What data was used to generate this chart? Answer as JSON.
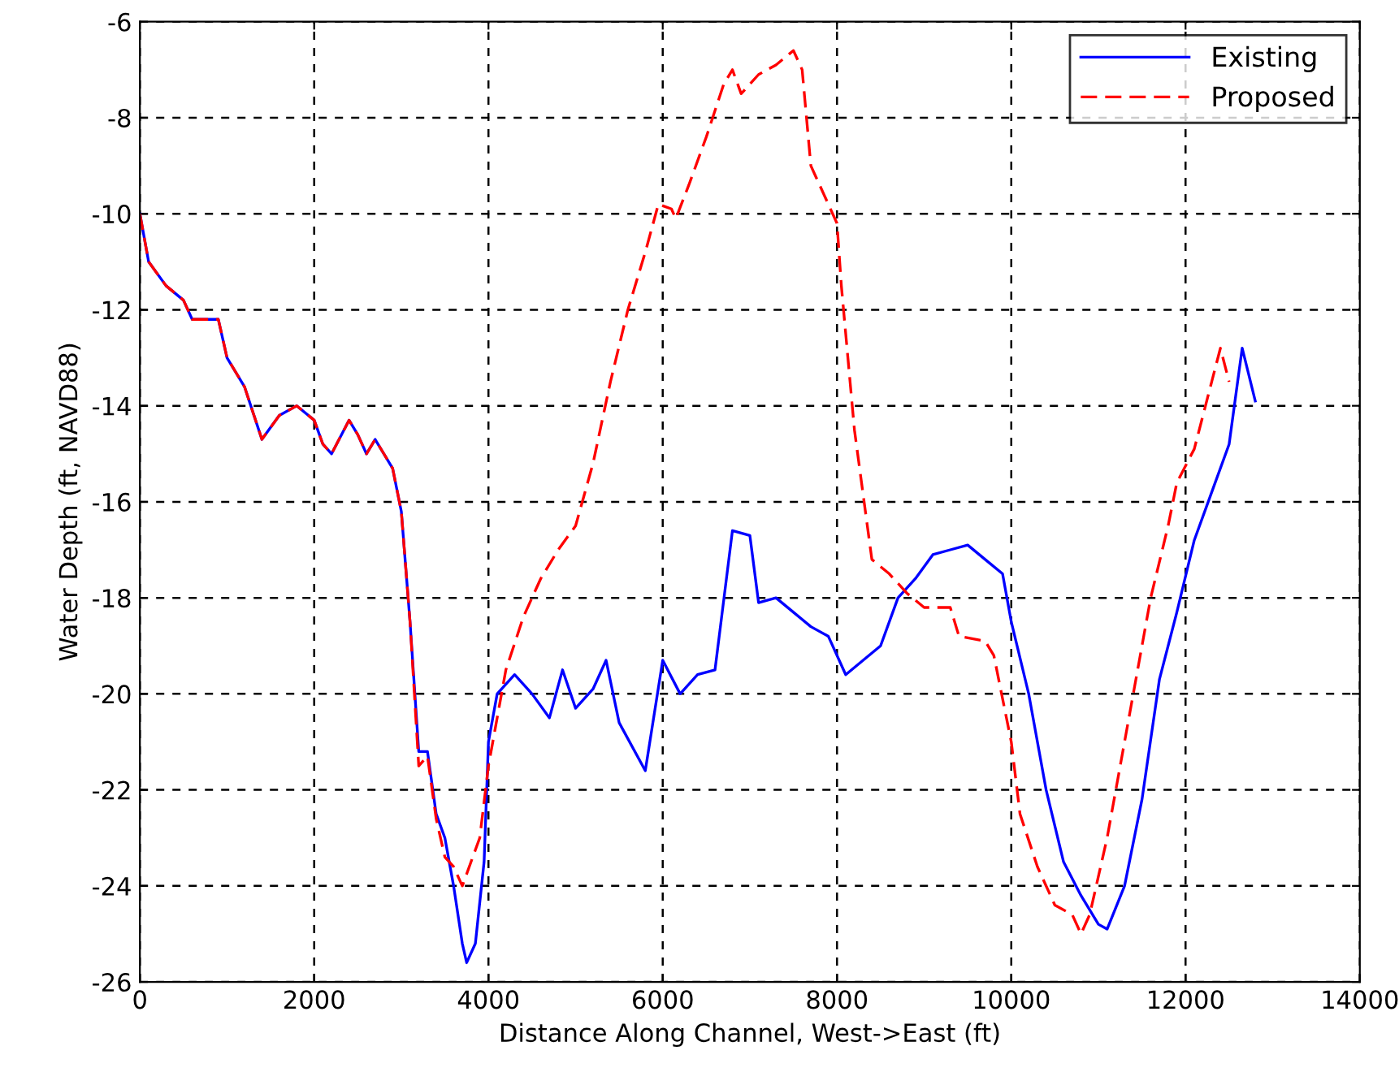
{
  "chart_data": {
    "type": "line",
    "xlabel": "Distance Along Channel, West->East (ft)",
    "ylabel": "Water Depth (ft, NAVD88)",
    "xlim": [
      0,
      14000
    ],
    "xticks": [
      0,
      2000,
      4000,
      6000,
      8000,
      10000,
      12000,
      14000
    ],
    "ylim": [
      -26,
      -6
    ],
    "yticks": [
      -26,
      -24,
      -22,
      -20,
      -18,
      -16,
      -14,
      -12,
      -10,
      -8,
      -6
    ],
    "grid": true,
    "legend": "top right",
    "series": [
      {
        "name": "Existing",
        "color": "#0000ff",
        "line_style": "solid",
        "x": [
          0,
          100,
          300,
          500,
          600,
          900,
          1000,
          1200,
          1400,
          1600,
          1800,
          2000,
          2100,
          2200,
          2400,
          2500,
          2600,
          2700,
          2900,
          3000,
          3100,
          3200,
          3300,
          3400,
          3500,
          3600,
          3700,
          3750,
          3850,
          3950,
          4000,
          4100,
          4300,
          4500,
          4700,
          4850,
          5000,
          5200,
          5350,
          5500,
          5800,
          6000,
          6200,
          6400,
          6600,
          6800,
          7000,
          7100,
          7300,
          7500,
          7700,
          7900,
          8100,
          8300,
          8500,
          8700,
          8900,
          9100,
          9300,
          9500,
          9700,
          9900,
          10000,
          10200,
          10400,
          10600,
          10800,
          11000,
          11100,
          11300,
          11500,
          11700,
          11900,
          12100,
          12300,
          12500,
          12650,
          12800
        ],
        "values": [
          -10,
          -11,
          -11.5,
          -11.8,
          -12.2,
          -12.2,
          -13,
          -13.6,
          -14.7,
          -14.2,
          -14,
          -14.3,
          -14.8,
          -15,
          -14.3,
          -14.6,
          -15,
          -14.7,
          -15.3,
          -16.2,
          -18.5,
          -21.2,
          -21.2,
          -22.5,
          -23,
          -24,
          -25.2,
          -25.6,
          -25.2,
          -23.5,
          -21,
          -20,
          -19.6,
          -20,
          -20.5,
          -19.5,
          -20.3,
          -19.9,
          -19.3,
          -20.6,
          -21.6,
          -19.3,
          -20,
          -19.6,
          -19.5,
          -16.6,
          -16.7,
          -18.1,
          -18,
          -18.3,
          -18.6,
          -18.8,
          -19.6,
          -19.3,
          -19,
          -18,
          -17.6,
          -17.1,
          -17,
          -16.9,
          -17.2,
          -17.5,
          -18.5,
          -20,
          -22,
          -23.5,
          -24.2,
          -24.8,
          -24.9,
          -24,
          -22.2,
          -19.7,
          -18.3,
          -16.8,
          -15.8,
          -14.8,
          -12.8,
          -13.9
        ]
      },
      {
        "name": "Proposed",
        "color": "#ff0000",
        "line_style": "dashed",
        "x": [
          0,
          100,
          300,
          500,
          600,
          900,
          1000,
          1200,
          1400,
          1600,
          1800,
          2000,
          2100,
          2200,
          2400,
          2500,
          2600,
          2700,
          2900,
          3000,
          3100,
          3200,
          3300,
          3400,
          3500,
          3600,
          3700,
          3800,
          3900,
          4000,
          4100,
          4200,
          4400,
          4600,
          4800,
          5000,
          5200,
          5400,
          5600,
          5800,
          5950,
          6100,
          6150,
          6300,
          6500,
          6700,
          6800,
          6900,
          7100,
          7300,
          7500,
          7600,
          7700,
          8000,
          8050,
          8200,
          8400,
          8600,
          8800,
          9000,
          9300,
          9400,
          9700,
          9800,
          10000,
          10100,
          10300,
          10500,
          10700,
          10800,
          10900,
          11100,
          11300,
          11500,
          11600,
          11800,
          11900,
          12100,
          12200,
          12300,
          12400,
          12500
        ],
        "values": [
          -10,
          -11,
          -11.5,
          -11.8,
          -12.2,
          -12.2,
          -13,
          -13.6,
          -14.7,
          -14.2,
          -14,
          -14.3,
          -14.8,
          -15,
          -14.3,
          -14.6,
          -15,
          -14.7,
          -15.3,
          -16.2,
          -18.5,
          -21.5,
          -21.3,
          -22.6,
          -23.4,
          -23.6,
          -24,
          -23.5,
          -23,
          -21.5,
          -20.5,
          -19.5,
          -18.4,
          -17.6,
          -17,
          -16.5,
          -15.2,
          -13.5,
          -12,
          -10.8,
          -9.8,
          -9.9,
          -10.1,
          -9.4,
          -8.4,
          -7.3,
          -7,
          -7.5,
          -7.1,
          -6.9,
          -6.6,
          -7,
          -9,
          -10.2,
          -11.5,
          -14.5,
          -17.2,
          -17.5,
          -17.9,
          -18.2,
          -18.2,
          -18.8,
          -18.9,
          -19.2,
          -21,
          -22.5,
          -23.6,
          -24.4,
          -24.6,
          -25,
          -24.6,
          -23,
          -21,
          -19,
          -18,
          -16.5,
          -15.6,
          -14.9,
          -14.2,
          -13.5,
          -12.8,
          -13.5
        ]
      }
    ]
  }
}
